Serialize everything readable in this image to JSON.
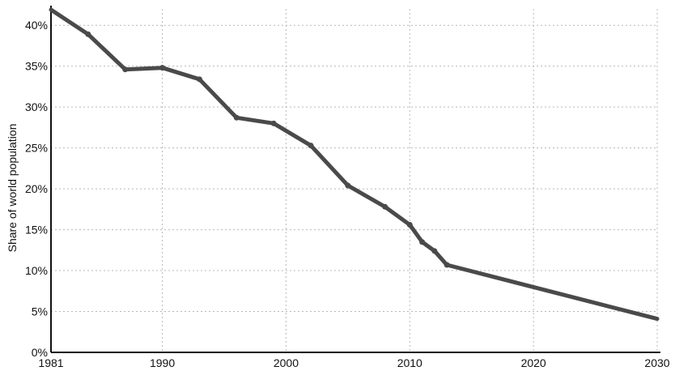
{
  "chart_data": {
    "type": "line",
    "title": "",
    "xlabel": "",
    "ylabel": "Share of world population",
    "xlim": [
      1981,
      2030
    ],
    "ylim": [
      0,
      42
    ],
    "grid": true,
    "x_ticks": [
      1981,
      1990,
      2000,
      2010,
      2020,
      2030
    ],
    "x_tick_labels": [
      "1981",
      "1990",
      "2000",
      "2010",
      "2020",
      "2030"
    ],
    "y_ticks": [
      0,
      5,
      10,
      15,
      20,
      25,
      30,
      35,
      40
    ],
    "y_tick_labels": [
      "0%",
      "5%",
      "10%",
      "15%",
      "20%",
      "25%",
      "30%",
      "35%",
      "40%"
    ],
    "line_color": "#4a4a4a",
    "series": [
      {
        "x": [
          1981,
          1984,
          1987,
          1990,
          1993,
          1996,
          1999,
          2002,
          2005,
          2008,
          2010,
          2011,
          2012,
          2013,
          2030
        ],
        "values": [
          41.9,
          38.9,
          34.6,
          34.8,
          33.4,
          28.7,
          28.0,
          25.3,
          20.4,
          17.8,
          15.6,
          13.5,
          12.4,
          10.7,
          4.1
        ],
        "markers_at": [
          1984,
          1987,
          1990,
          1993,
          1996,
          1999,
          2002,
          2005,
          2008,
          2010,
          2011,
          2012,
          2013
        ]
      }
    ]
  }
}
